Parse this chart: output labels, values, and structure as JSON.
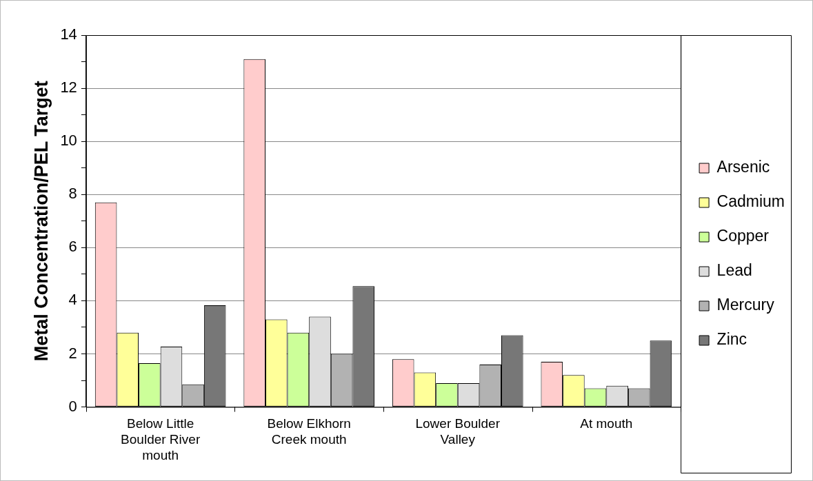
{
  "chart_data": {
    "type": "bar",
    "ylabel": "Metal Concentration/PEL Target",
    "categories": [
      "Below Little Boulder River mouth",
      "Below Elkhorn Creek mouth",
      "Lower Boulder Valley",
      "At mouth"
    ],
    "series": [
      {
        "name": "Arsenic",
        "color": "#ffcccc",
        "values": [
          7.7,
          13.1,
          1.8,
          1.7
        ]
      },
      {
        "name": "Cadmium",
        "color": "#ffff99",
        "values": [
          2.8,
          3.3,
          1.3,
          1.2
        ]
      },
      {
        "name": "Copper",
        "color": "#ccff99",
        "values": [
          1.65,
          2.8,
          0.9,
          0.7
        ]
      },
      {
        "name": "Lead",
        "color": "#dddddd",
        "values": [
          2.27,
          3.4,
          0.9,
          0.8
        ]
      },
      {
        "name": "Mercury",
        "color": "#b2b2b2",
        "values": [
          0.85,
          2.0,
          1.6,
          0.7
        ]
      },
      {
        "name": "Zinc",
        "color": "#777777",
        "values": [
          3.83,
          4.55,
          2.7,
          2.5
        ]
      }
    ],
    "ylim": [
      0,
      14
    ],
    "yticks": [
      0,
      {
        "value": 1,
        "label": null
      },
      2,
      {
        "value": 3,
        "label": null
      },
      4,
      {
        "value": 5,
        "label": null
      },
      6,
      {
        "value": 7,
        "label": null
      },
      8,
      {
        "value": 9,
        "label": null
      },
      10,
      {
        "value": 11,
        "label": null
      },
      12,
      {
        "value": 13,
        "label": null
      },
      14
    ],
    "grid": "y",
    "legend": "right"
  }
}
